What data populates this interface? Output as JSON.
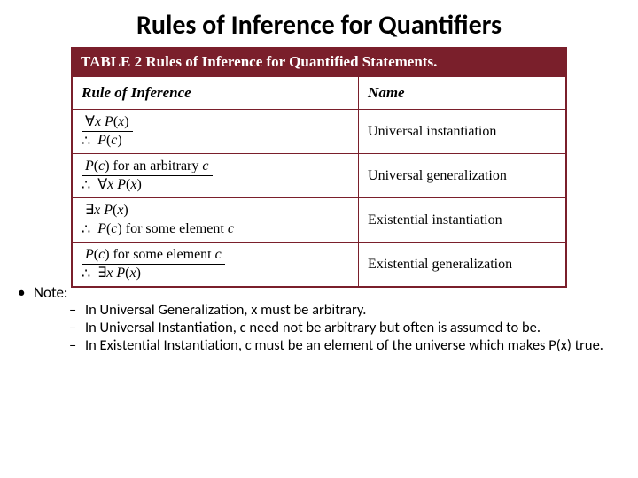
{
  "title": "Rules of Inference for Quantifiers",
  "table": {
    "caption": "TABLE 2  Rules of Inference for Quantified Statements.",
    "border_color": "#7a1f2b",
    "caption_bg": "#7a1f2b",
    "headers": {
      "col1": "Rule of Inference",
      "col2": "Name"
    },
    "rows": [
      {
        "premise_html": "∀<span class='math-i'>x P</span>(<span class='math-i'>x</span>)",
        "conclusion_html": "<span class='math-i'>P</span>(<span class='math-i'>c</span>)",
        "name": "Universal instantiation"
      },
      {
        "premise_html": "<span class='math-i'>P</span>(<span class='math-i'>c</span>) for an arbitrary <span class='math-i'>c</span>",
        "conclusion_html": "∀<span class='math-i'>x P</span>(<span class='math-i'>x</span>)",
        "name": "Universal generalization"
      },
      {
        "premise_html": "∃<span class='math-i'>x P</span>(<span class='math-i'>x</span>)",
        "conclusion_html": "<span class='math-i'>P</span>(<span class='math-i'>c</span>) for some element <span class='math-i'>c</span>",
        "name": "Existential instantiation"
      },
      {
        "premise_html": "<span class='math-i'>P</span>(<span class='math-i'>c</span>) for some element <span class='math-i'>c</span>",
        "conclusion_html": "∃<span class='math-i'>x P</span>(<span class='math-i'>x</span>)",
        "name": "Existential generalization"
      }
    ]
  },
  "notes": {
    "label": "Note:",
    "items": [
      "In Universal Generalization, x must be arbitrary.",
      "In Universal Instantiation, c need not be arbitrary but often is assumed to be.",
      "In Existential Instantiation, c must be an element of the universe which makes P(x) true."
    ]
  }
}
